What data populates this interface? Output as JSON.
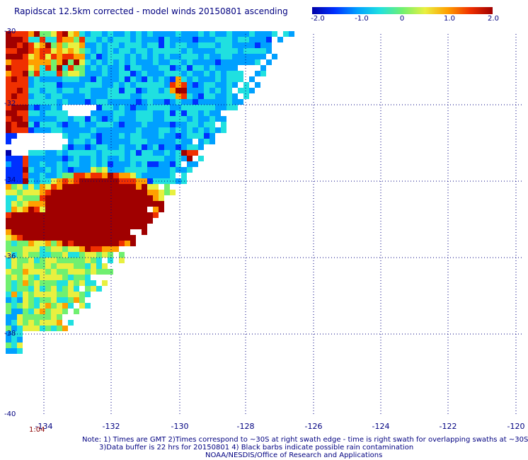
{
  "title": "Rapidscat 12.5km corrected - model winds 20150801 ascending",
  "colorbar": {
    "ticks": [
      "-2.0",
      "-1.0",
      "0",
      "1.0",
      "2.0"
    ],
    "min": -2.0,
    "max": 2.0,
    "colors": [
      "#0000a8",
      "#0030ff",
      "#00a0ff",
      "#20e0e0",
      "#70f070",
      "#e8f040",
      "#ffa000",
      "#f03000",
      "#a00000"
    ]
  },
  "axes": {
    "lat_labels": [
      "-30",
      "-32",
      "-34",
      "-36",
      "-38",
      "-40"
    ],
    "lon_labels": [
      "-134",
      "-132",
      "-130",
      "-128",
      "-126",
      "-124",
      "-122",
      "-120"
    ],
    "lat_range": [
      -40,
      -30
    ],
    "lon_range": [
      -135,
      -120
    ],
    "grid": true
  },
  "time_label": "1:04",
  "notes": {
    "line1": "Note: 1) Times are GMT 2)Times correspond to ~30S at right swath edge - time is right swath for overlapping swaths at ~30S",
    "line2": "3)Data buffer is 22 hrs for 20150801 4) Black barbs indicate possible rain contamination",
    "line3": "NOAA/NESDIS/Office of Research and Applications"
  }
}
